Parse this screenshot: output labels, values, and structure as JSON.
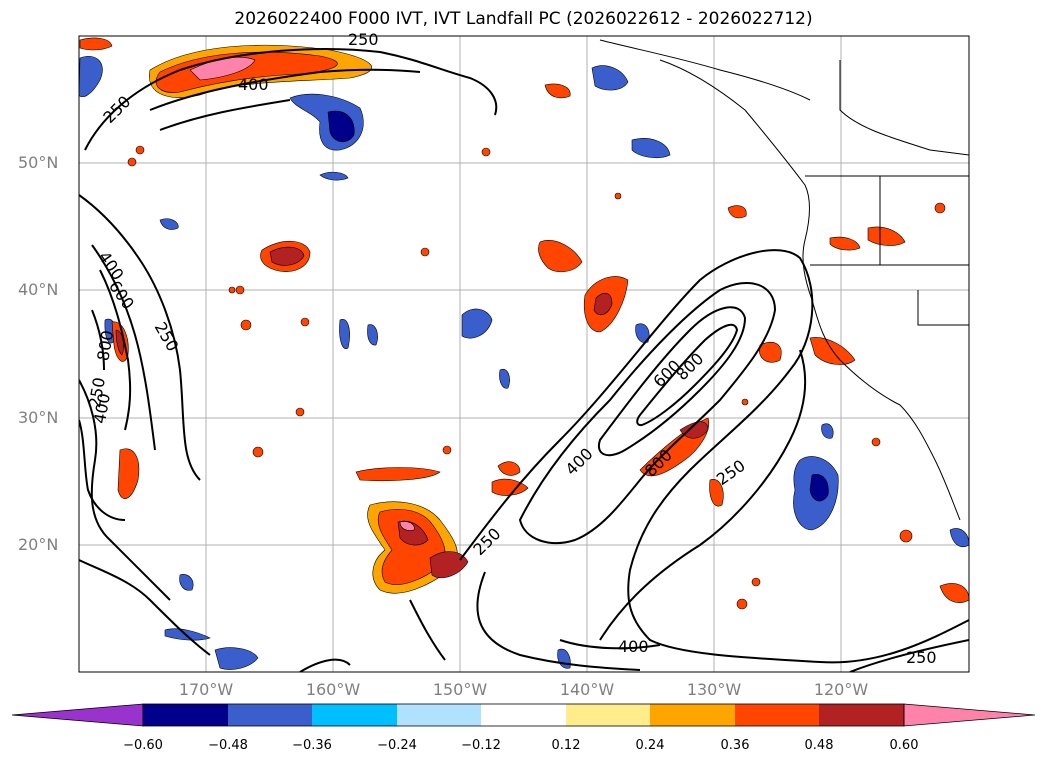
{
  "title": "2026022400 F000 IVT, IVT Landfall PC (2026022612 - 2026022712)",
  "latitude_labels": [
    "50°N",
    "40°N",
    "30°N",
    "20°N"
  ],
  "longitude_labels": [
    "170°W",
    "160°W",
    "150°W",
    "140°W",
    "130°W",
    "120°W"
  ],
  "contour_labels": [
    "250",
    "400",
    "250",
    "400",
    "600",
    "800",
    "250",
    "400",
    "250",
    "400",
    "600",
    "800",
    "800",
    "250",
    "250",
    "400",
    "250"
  ],
  "colorbar": {
    "ticks": [
      "−0.60",
      "−0.48",
      "−0.36",
      "−0.24",
      "−0.12",
      "0.12",
      "0.24",
      "0.36",
      "0.48",
      "0.60"
    ],
    "colors": [
      "#9a32cd",
      "#00008b",
      "#3a5fcd",
      "#00bfff",
      "#b0e2ff",
      "#ffffff",
      "#ffec8b",
      "#ffa500",
      "#ff4500",
      "#b22222",
      "#ff82ab"
    ]
  },
  "chart_data": {
    "type": "map_contour",
    "title": "2026022400 F000 IVT, IVT Landfall PC (2026022612 - 2026022712)",
    "lon_range": [
      -180,
      -110
    ],
    "lat_range": [
      10,
      60
    ],
    "contour_levels_IVT": [
      250,
      400,
      600,
      800
    ],
    "shading_levels_PC": [
      -0.6,
      -0.48,
      -0.36,
      -0.24,
      -0.12,
      0.12,
      0.24,
      0.36,
      0.48,
      0.6
    ]
  }
}
